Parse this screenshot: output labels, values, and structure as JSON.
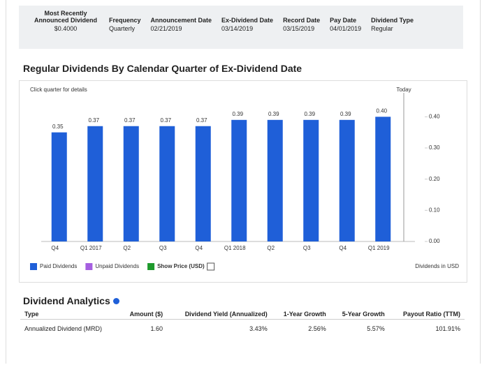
{
  "summary": {
    "headers": [
      "Most Recently Announced Dividend",
      "Frequency",
      "Announcement Date",
      "Ex-Dividend Date",
      "Record Date",
      "Pay Date",
      "Dividend Type"
    ],
    "values": [
      "$0.4000",
      "Quarterly",
      "02/21/2019",
      "03/14/2019",
      "03/15/2019",
      "04/01/2019",
      "Regular"
    ]
  },
  "chart_data": {
    "type": "bar",
    "title": "Regular Dividends By Calendar Quarter of Ex-Dividend Date",
    "subtitle": "Click quarter for details",
    "categories": [
      "Q4",
      "Q1 2017",
      "Q2",
      "Q3",
      "Q4",
      "Q1 2018",
      "Q2",
      "Q3",
      "Q4",
      "Q1 2019"
    ],
    "series": [
      {
        "name": "Paid Dividends",
        "color": "#1f5fd8",
        "values": [
          0.35,
          0.37,
          0.37,
          0.37,
          0.37,
          0.39,
          0.39,
          0.39,
          0.39,
          0.4
        ],
        "value_labels": [
          "0.35",
          "0.37",
          "0.37",
          "0.37",
          "0.37",
          "0.39",
          "0.39",
          "0.39",
          "0.39",
          "0.40"
        ]
      }
    ],
    "extra_legend": [
      {
        "name": "Unpaid Dividends",
        "color": "#a55fe0"
      },
      {
        "name": "Show Price (USD)",
        "color": "#1e9a2c"
      }
    ],
    "ylim": [
      0,
      0.45
    ],
    "yticks": [
      {
        "value": 0,
        "label": "0.00"
      },
      {
        "value": 0.1,
        "label": "0.10"
      },
      {
        "value": 0.2,
        "label": "0.20"
      },
      {
        "value": 0.3,
        "label": "0.30"
      },
      {
        "value": 0.4,
        "label": "0.40"
      }
    ],
    "y_axis_side": "right",
    "grid": false,
    "marker_label": "Today",
    "units_note": "Dividends in USD"
  },
  "analytics": {
    "title": "Dividend Analytics",
    "headers": [
      "Type",
      "Amount ($)",
      "Dividend Yield (Annualized)",
      "1-Year Growth",
      "5-Year Growth",
      "Payout Ratio (TTM)"
    ],
    "rows": [
      [
        "Annualized Dividend (MRD)",
        "1.60",
        "3.43%",
        "2.56%",
        "5.57%",
        "101.91%"
      ]
    ]
  }
}
